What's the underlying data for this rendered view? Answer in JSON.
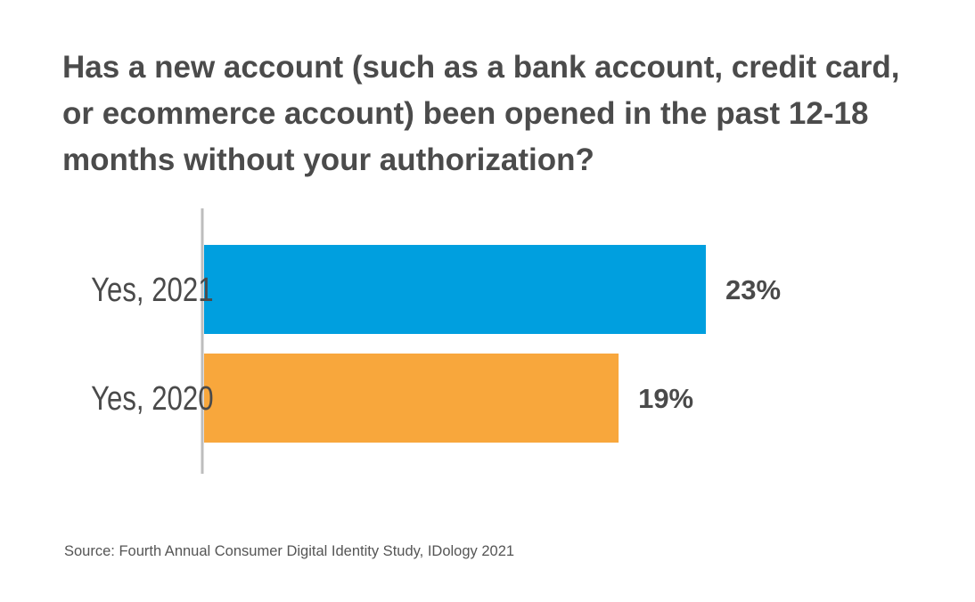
{
  "title": "Has a new account (such as a bank account, credit card,\nor ecommerce account)  been opened in the past 12-18\nmonths without your authorization?",
  "source": "Source: Fourth Annual Consumer Digital Identity Study, IDology 2021",
  "chart_data": {
    "type": "bar",
    "orientation": "horizontal",
    "title": "Has a new account (such as a bank account, credit card, or ecommerce account)  been opened in the past 12-18 months without your authorization?",
    "categories": [
      "Yes, 2021",
      "Yes, 2020"
    ],
    "values": [
      23,
      19
    ],
    "value_labels": [
      "23%",
      "19%"
    ],
    "colors": [
      "#009fdf",
      "#f8a73c"
    ],
    "axis_color": "#bdbdbd",
    "xlim": [
      0,
      23
    ],
    "grid": false,
    "legend": "none"
  }
}
